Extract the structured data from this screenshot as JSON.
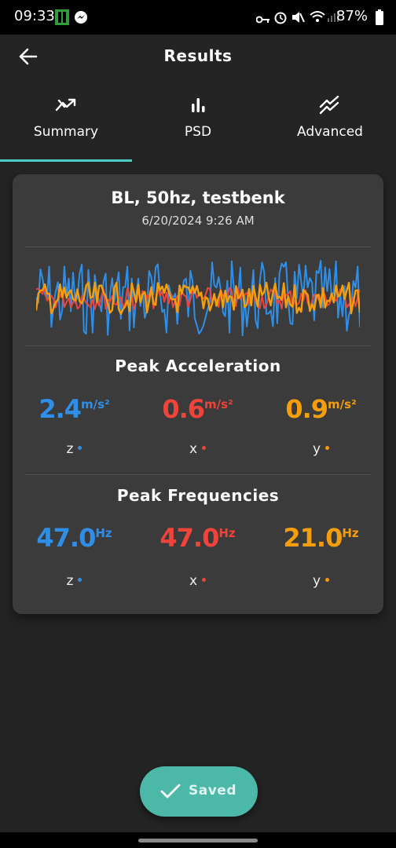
{
  "status": {
    "time": "09:33",
    "battery": "87%"
  },
  "header": {
    "title": "Results",
    "back_icon": "arrow-left-icon"
  },
  "tabs": [
    {
      "label": "Summary",
      "icon": "trending-icon",
      "active": true
    },
    {
      "label": "PSD",
      "icon": "bar-chart-icon",
      "active": false
    },
    {
      "label": "Advanced",
      "icon": "double-trend-icon",
      "active": false
    }
  ],
  "card": {
    "title": "BL, 50hz, testbenk",
    "date": "6/20/2024 9:26 AM"
  },
  "peak_acceleration": {
    "title": "Peak Acceleration",
    "unit": "m/s²",
    "values": [
      {
        "axis": "z",
        "value": "2.4",
        "color": "#2f8fe8"
      },
      {
        "axis": "x",
        "value": "0.6",
        "color": "#f0433a"
      },
      {
        "axis": "y",
        "value": "0.9",
        "color": "#f59e0b"
      }
    ]
  },
  "peak_frequencies": {
    "title": "Peak Frequencies",
    "unit": "Hz",
    "values": [
      {
        "axis": "z",
        "value": "47.0",
        "color": "#2f8fe8"
      },
      {
        "axis": "x",
        "value": "47.0",
        "color": "#f0433a"
      },
      {
        "axis": "y",
        "value": "21.0",
        "color": "#f59e0b"
      }
    ]
  },
  "saved_button": {
    "label": "Saved",
    "color": "#4bb8a8"
  }
}
